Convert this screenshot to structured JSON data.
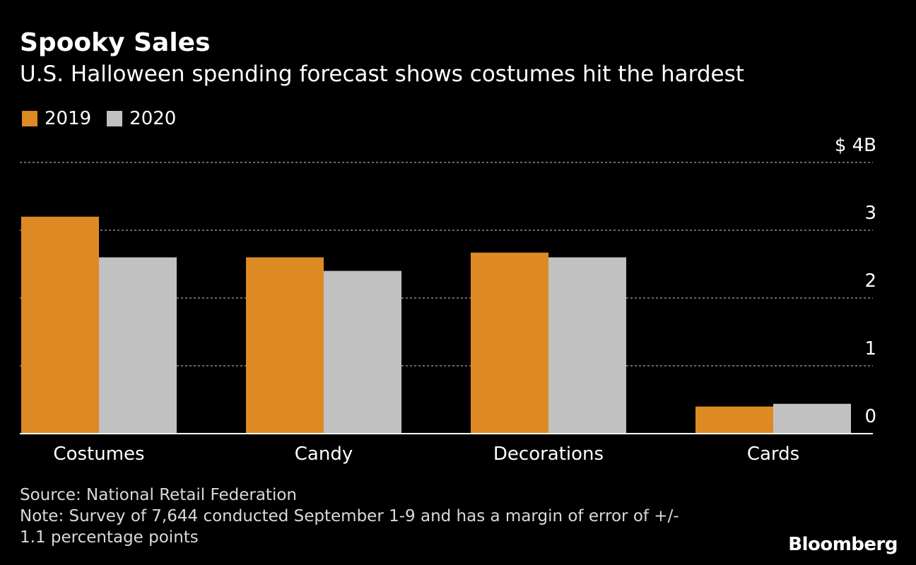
{
  "header": {
    "title": "Spooky Sales",
    "subtitle": "U.S. Halloween spending forecast shows costumes hit the hardest"
  },
  "legend": [
    {
      "label": "2019",
      "color": "#dd8a25"
    },
    {
      "label": "2020",
      "color": "#c1c1c1"
    }
  ],
  "chart_data": {
    "type": "bar",
    "title": "Spooky Sales",
    "subtitle": "U.S. Halloween spending forecast shows costumes hit the hardest",
    "categories": [
      "Costumes",
      "Candy",
      "Decorations",
      "Cards"
    ],
    "series": [
      {
        "name": "2019",
        "values": [
          3.2,
          2.6,
          2.67,
          0.4
        ]
      },
      {
        "name": "2020",
        "values": [
          2.6,
          2.4,
          2.6,
          0.44
        ]
      }
    ],
    "xlabel": "",
    "ylabel": "",
    "ylim": [
      0,
      4
    ],
    "yticks": [
      0,
      1,
      2,
      3,
      4
    ],
    "ytick_labels": [
      "0",
      "1",
      "2",
      "3",
      "$ 4B"
    ],
    "grid": true,
    "legend_position": "top-left"
  },
  "footer": {
    "source": "Source: National Retail Federation",
    "note_line1": "Note: Survey of 7,644 conducted September 1-9 and has a margin of error of +/-",
    "note_line2": "1.1 percentage points",
    "brand": "Bloomberg"
  }
}
